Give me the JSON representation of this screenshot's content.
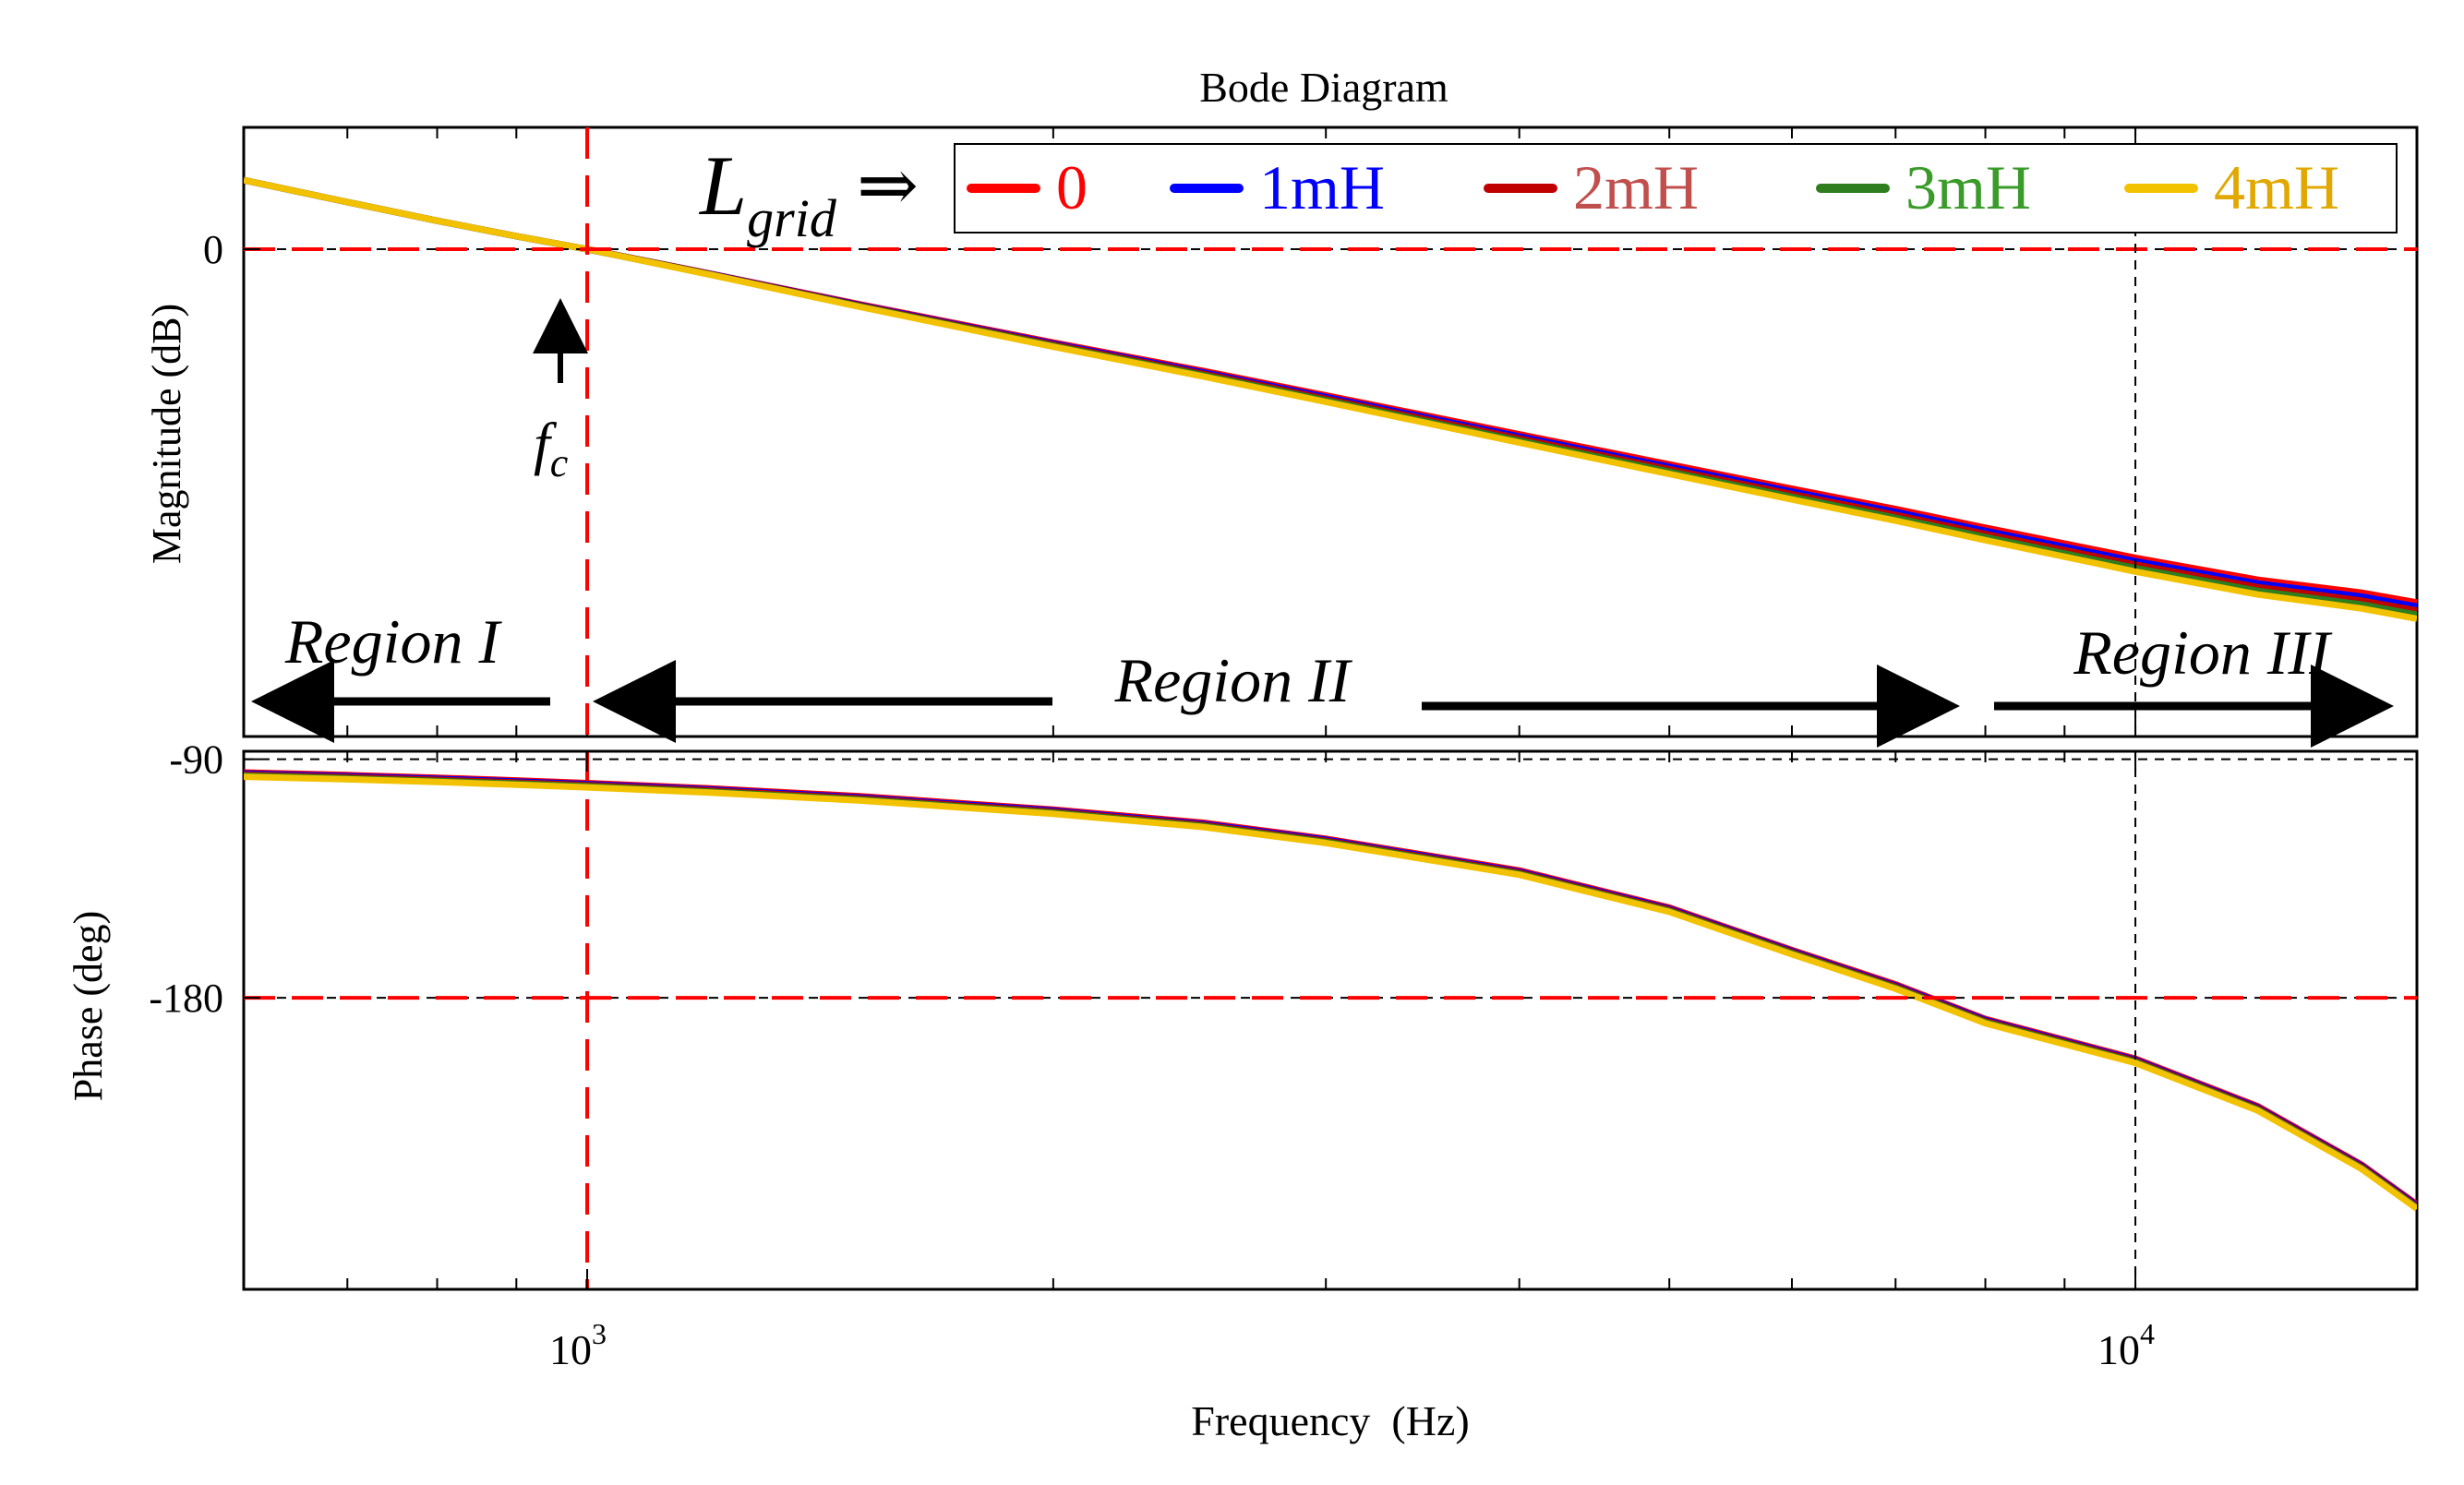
{
  "chart_data": {
    "type": "line",
    "title": "Bode Diagram",
    "xlabel": "Frequency  (Hz)",
    "x_scale": "log",
    "xlim": [
      600,
      15200
    ],
    "x_tick_labels": [
      {
        "value": 1000,
        "base": "10",
        "exp": "3"
      },
      {
        "value": 10000,
        "base": "10",
        "exp": "4"
      }
    ],
    "legend": {
      "prefix_main": "L",
      "prefix_sub": "grid",
      "arrow": "⇒",
      "placement": "top-right"
    },
    "series": [
      {
        "name": "0",
        "color": "#ff0000",
        "text_color": "#ff0000",
        "mag_offset_db": 0.0,
        "phase_offset_deg": 0.0
      },
      {
        "name": "1mH",
        "color": "#0000ff",
        "text_color": "#0000ff",
        "mag_offset_db": -0.5,
        "phase_offset_deg": -0.4
      },
      {
        "name": "2mH",
        "color": "#c00000",
        "text_color": "#c0504d",
        "mag_offset_db": -1.0,
        "phase_offset_deg": -0.8
      },
      {
        "name": "3mH",
        "color": "#2e7d1e",
        "text_color": "#3a9a2a",
        "mag_offset_db": -1.5,
        "phase_offset_deg": -1.2
      },
      {
        "name": "4mH",
        "color": "#f2c200",
        "text_color": "#e0a800",
        "mag_offset_db": -2.0,
        "phase_offset_deg": -1.6
      }
    ],
    "magnitude": {
      "ylabel": "Magnitude (dB)",
      "ylim": [
        -60,
        15
      ],
      "tick_labels": [
        {
          "value": 0,
          "label": "0"
        }
      ],
      "base_curve": {
        "f": [
          600,
          700,
          800,
          900,
          1000,
          1200,
          1500,
          2000,
          2500,
          3000,
          4000,
          5000,
          6000,
          7000,
          8000,
          10000,
          12000,
          14000,
          15200
        ],
        "db": [
          8.5,
          5.8,
          3.5,
          1.6,
          0.0,
          -3.0,
          -6.8,
          -11.5,
          -15.0,
          -18.0,
          -22.8,
          -26.5,
          -29.5,
          -32.0,
          -34.3,
          -38.0,
          -40.7,
          -42.3,
          -43.5
        ]
      },
      "annotations": {
        "zero_db_line": 0,
        "crossover_label_main": "f",
        "crossover_label_sub": "c",
        "crossover_freq": 1000,
        "regions": [
          "Region I",
          "Region II",
          "Region III"
        ],
        "region_bounds_hz": [
          1000,
          10000
        ]
      }
    },
    "phase": {
      "ylabel": "Phase (deg)",
      "ylim": [
        -290,
        -87
      ],
      "tick_labels": [
        {
          "value": -90,
          "label": "-90"
        },
        {
          "value": -180,
          "label": "-180"
        }
      ],
      "base_curve": {
        "f": [
          600,
          700,
          800,
          900,
          1000,
          1200,
          1500,
          2000,
          2500,
          3000,
          4000,
          5000,
          6000,
          7000,
          8000,
          10000,
          12000,
          14000,
          15200
        ],
        "deg": [
          -95,
          -96,
          -97,
          -98,
          -99,
          -101,
          -104,
          -109,
          -114,
          -120,
          -132,
          -146,
          -162,
          -175,
          -188,
          -203,
          -221,
          -243,
          -258
        ]
      },
      "reference_line": -180
    }
  }
}
